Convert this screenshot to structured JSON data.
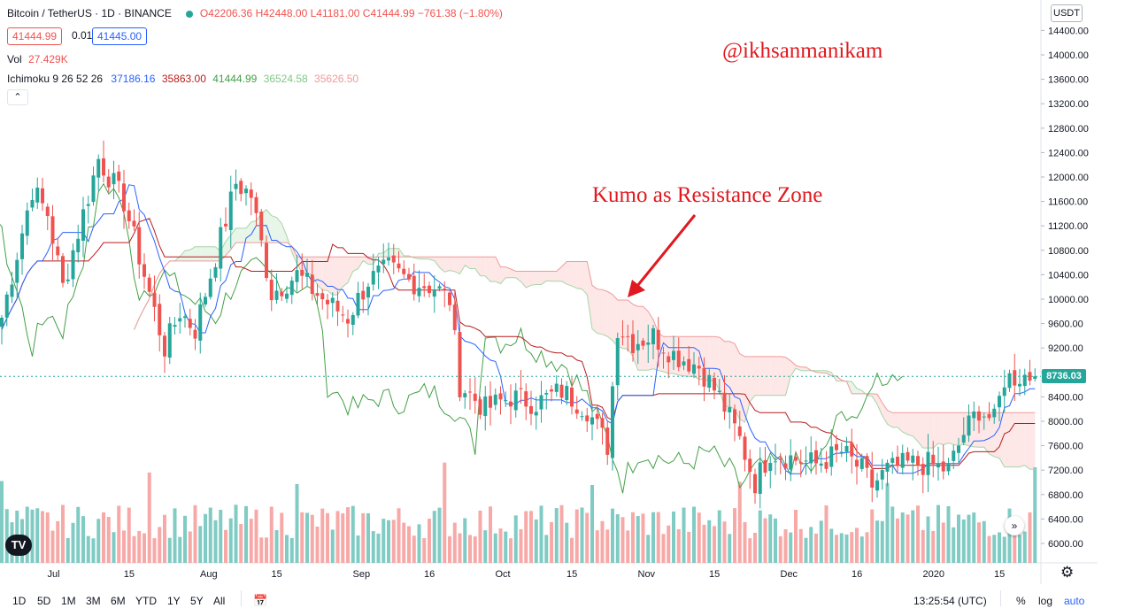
{
  "header": {
    "symbol": "Bitcoin / TetherUS · 1D · BINANCE",
    "ohlc": "O42206.36 H42448.00 L41181.00 C41444.99 −761.38 (−1.80%)",
    "sell_price": "41444.99",
    "spread": "0.01",
    "buy_price": "41445.00",
    "vol_label": "Vol",
    "vol_value": "27.429K",
    "ichimoku_label": "Ichimoku 9 26 52 26",
    "ichimoku_values": [
      "37186.16",
      "35863.00",
      "41444.99",
      "36524.58",
      "35626.50"
    ],
    "collapse_icon": "chevron-up-icon"
  },
  "currency": "USDT",
  "watermark": "@ikhsanmanikam",
  "annotation": "Kumo as Resistance Zone",
  "last_price": "8736.03",
  "colors": {
    "up": "#26a69a",
    "down": "#ef5350",
    "tenkan": "#2962ff",
    "kijun": "#b71c1c",
    "chikou": "#43a047",
    "cloud_bull": "#e8f5e9",
    "cloud_bear": "#fde7e7",
    "annotation": "#e0191f"
  },
  "bottom_bar": {
    "timeframes": [
      "1D",
      "5D",
      "1M",
      "3M",
      "6M",
      "YTD",
      "1Y",
      "5Y",
      "All"
    ],
    "calendar_icon": "calendar-icon",
    "clock": "13:25:54 (UTC)",
    "percent": "%",
    "log": "log",
    "auto": "auto"
  },
  "chart_data": {
    "type": "candlestick",
    "y_ticks": [
      "6000.00",
      "6400.00",
      "6800.00",
      "7200.00",
      "7600.00",
      "8000.00",
      "8400.00",
      "8800.00",
      "9200.00",
      "9600.00",
      "10000.00",
      "10400.00",
      "10800.00",
      "11200.00",
      "11600.00",
      "12000.00",
      "12400.00",
      "12800.00",
      "13200.00",
      "13600.00",
      "14000.00",
      "14400.00"
    ],
    "x_ticks": [
      "Jul",
      "15",
      "Aug",
      "15",
      "Sep",
      "16",
      "Oct",
      "15",
      "Nov",
      "15",
      "Dec",
      "16",
      "2020",
      "15"
    ],
    "ylim": [
      5800,
      14600
    ],
    "anchors": [
      {
        "d": 0,
        "p": 9700
      },
      {
        "d": 6,
        "p": 11800
      },
      {
        "d": 9,
        "p": 11400
      },
      {
        "d": 12,
        "p": 10200
      },
      {
        "d": 15,
        "p": 11100
      },
      {
        "d": 19,
        "p": 12300
      },
      {
        "d": 24,
        "p": 11600
      },
      {
        "d": 28,
        "p": 10400
      },
      {
        "d": 32,
        "p": 9200
      },
      {
        "d": 35,
        "p": 9800
      },
      {
        "d": 38,
        "p": 9500
      },
      {
        "d": 42,
        "p": 10700
      },
      {
        "d": 46,
        "p": 11900
      },
      {
        "d": 49,
        "p": 11700
      },
      {
        "d": 53,
        "p": 10100
      },
      {
        "d": 58,
        "p": 10400
      },
      {
        "d": 63,
        "p": 10000
      },
      {
        "d": 68,
        "p": 9700
      },
      {
        "d": 72,
        "p": 10300
      },
      {
        "d": 76,
        "p": 10500
      },
      {
        "d": 80,
        "p": 10300
      },
      {
        "d": 85,
        "p": 10200
      },
      {
        "d": 88,
        "p": 10000
      },
      {
        "d": 90,
        "p": 8600
      },
      {
        "d": 95,
        "p": 8200
      },
      {
        "d": 100,
        "p": 8400
      },
      {
        "d": 105,
        "p": 8300
      },
      {
        "d": 110,
        "p": 8500
      },
      {
        "d": 115,
        "p": 8200
      },
      {
        "d": 119,
        "p": 7600
      },
      {
        "d": 121,
        "p": 9550
      },
      {
        "d": 124,
        "p": 9300
      },
      {
        "d": 128,
        "p": 9400
      },
      {
        "d": 132,
        "p": 9100
      },
      {
        "d": 137,
        "p": 8900
      },
      {
        "d": 141,
        "p": 8400
      },
      {
        "d": 145,
        "p": 7700
      },
      {
        "d": 148,
        "p": 7000
      },
      {
        "d": 151,
        "p": 7500
      },
      {
        "d": 155,
        "p": 7400
      },
      {
        "d": 160,
        "p": 7300
      },
      {
        "d": 165,
        "p": 7500
      },
      {
        "d": 169,
        "p": 7200
      },
      {
        "d": 171,
        "p": 6950
      },
      {
        "d": 174,
        "p": 7200
      },
      {
        "d": 178,
        "p": 7300
      },
      {
        "d": 182,
        "p": 7300
      },
      {
        "d": 186,
        "p": 7200
      },
      {
        "d": 189,
        "p": 7800
      },
      {
        "d": 192,
        "p": 8200
      },
      {
        "d": 195,
        "p": 8000
      },
      {
        "d": 197,
        "p": 8700
      },
      {
        "d": 201,
        "p": 8750
      },
      {
        "d": 203,
        "p": 8736
      }
    ],
    "x_tick_days": [
      10,
      40,
      70,
      98,
      126,
      154,
      182,
      210
    ],
    "last_close": 8736.03
  }
}
